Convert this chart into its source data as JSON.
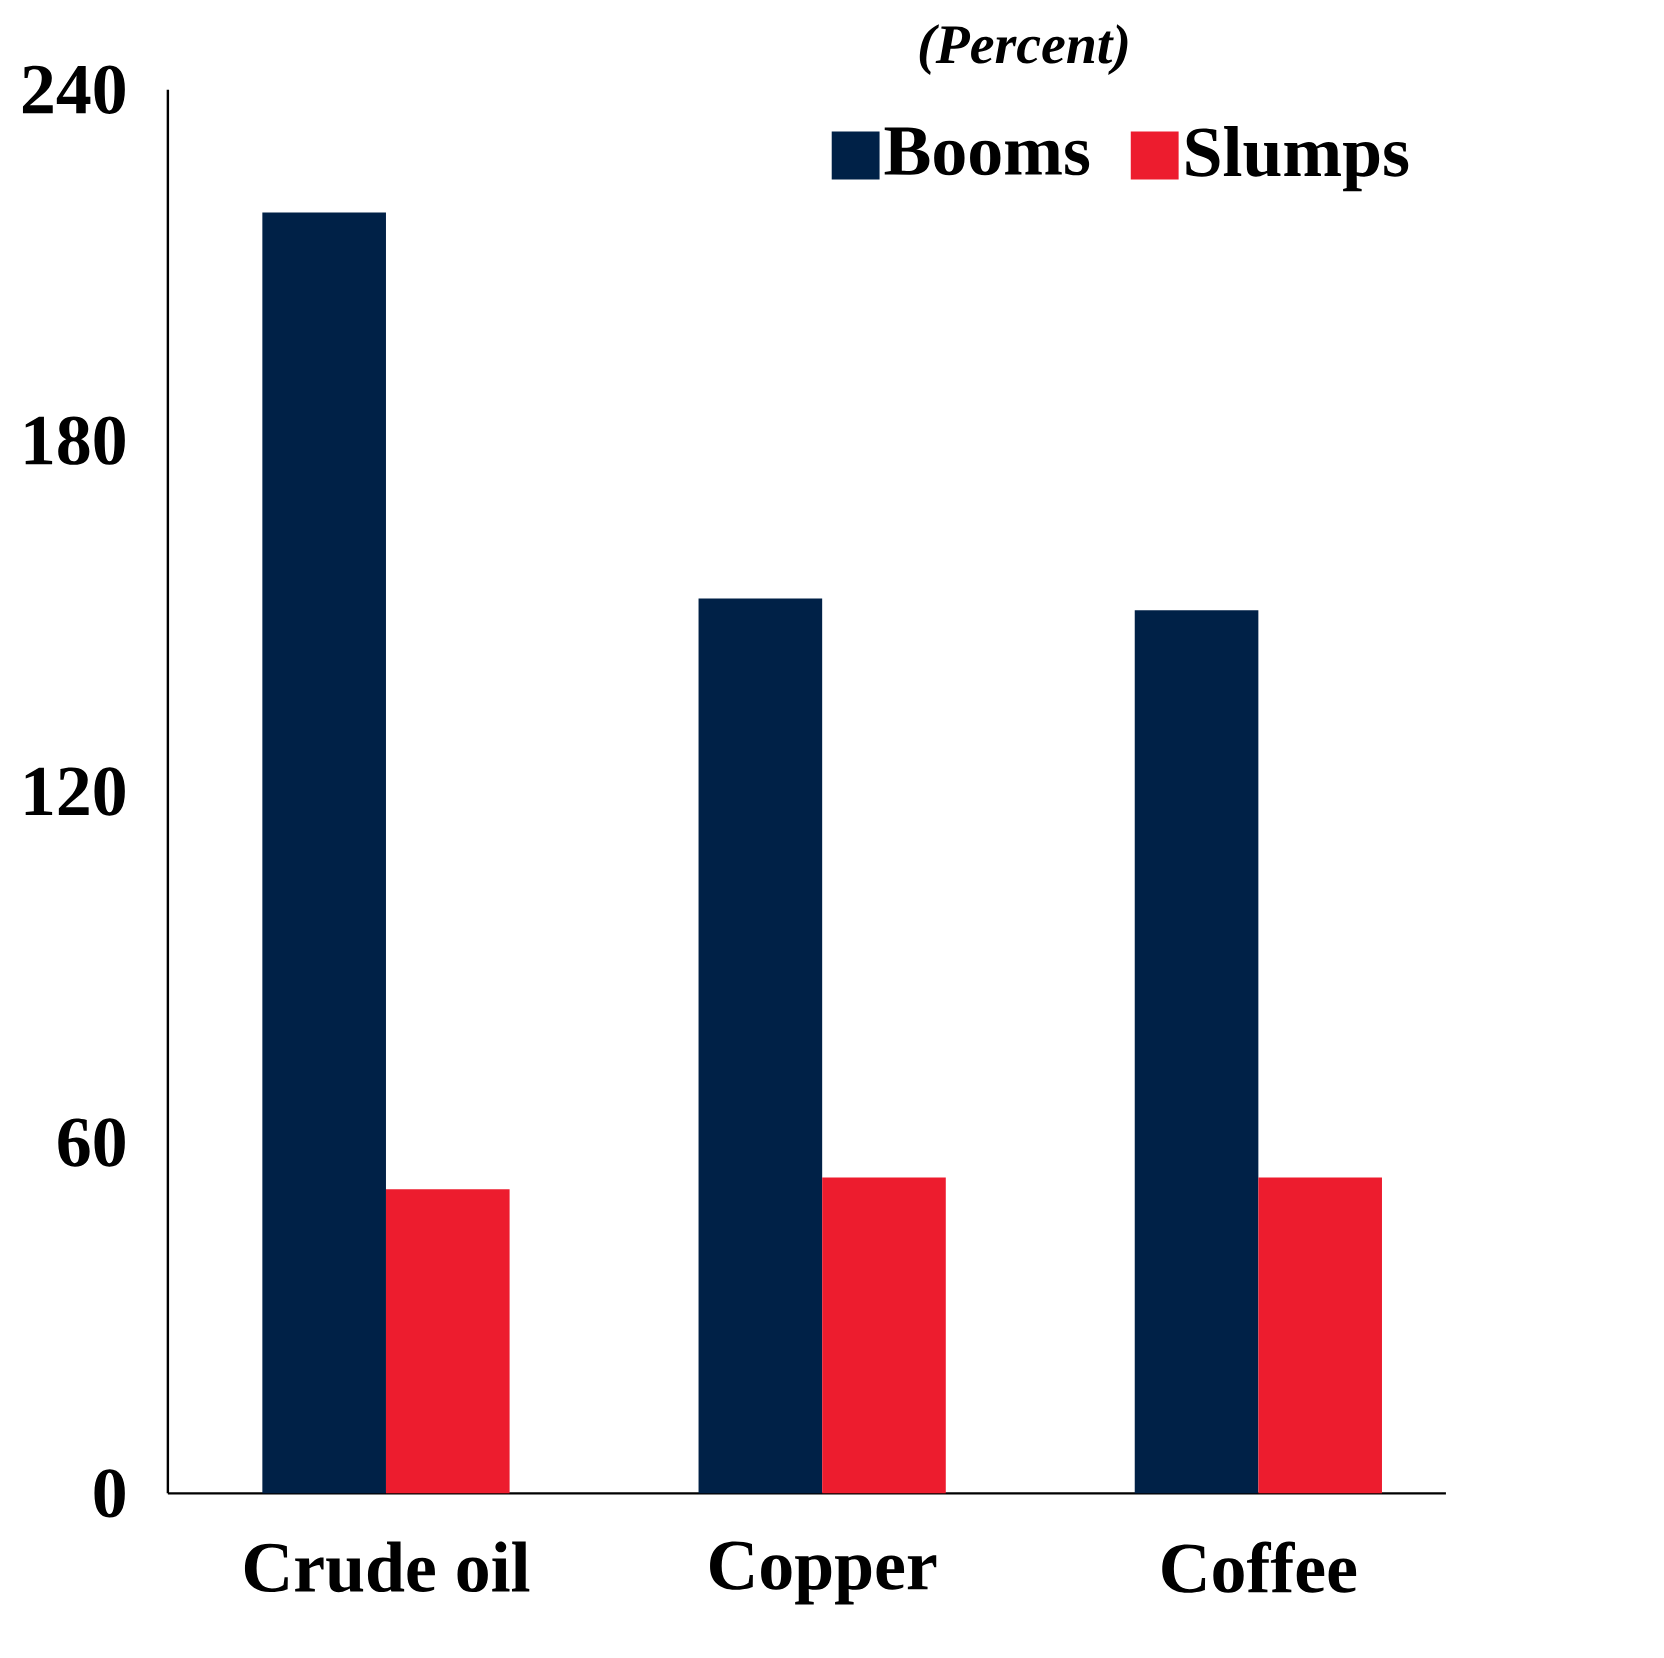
{
  "chart_data": {
    "type": "bar",
    "subtitle": "(Percent)",
    "categories": [
      "Crude oil",
      "Copper",
      "Coffee"
    ],
    "series": [
      {
        "name": "Booms",
        "color": "#002147",
        "values": [
          219,
          153,
          151
        ]
      },
      {
        "name": "Slumps",
        "color": "#ed1c2e",
        "values": [
          52,
          54,
          54
        ]
      }
    ],
    "ylim": [
      0,
      240
    ],
    "yticks": [
      0,
      60,
      120,
      180,
      240
    ],
    "grid": false,
    "legend": "top right"
  }
}
